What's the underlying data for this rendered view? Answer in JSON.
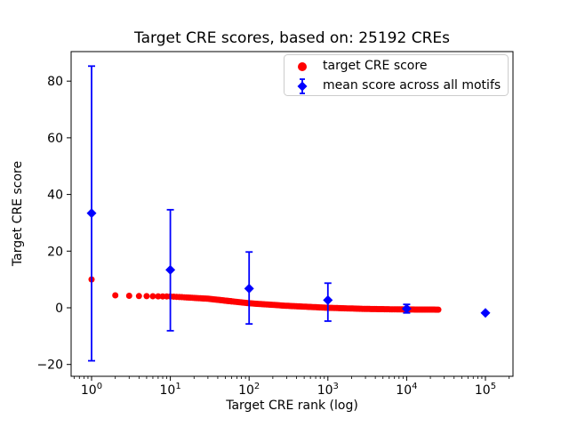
{
  "figure": {
    "title": "Target CRE scores, based on: 25192 CREs",
    "xlabel": "Target CRE rank (log)",
    "ylabel": "Target CRE score",
    "background_color": "#ffffff"
  },
  "legend": {
    "position": "upper right",
    "border_color": "#cccccc",
    "entries": [
      {
        "label": "target CRE score",
        "marker": "red-circle-icon",
        "color": "#ff0000"
      },
      {
        "label": "mean score across all motifs",
        "marker": "blue-diamond-errorbar-icon",
        "color": "#0000ff"
      }
    ]
  },
  "chart_data": {
    "type": "scatter",
    "title": "Target CRE scores, based on: 25192 CREs",
    "xlabel": "Target CRE rank (log)",
    "ylabel": "Target CRE score",
    "x_scale": "log",
    "y_scale": "linear",
    "xlim": [
      0.55,
      220000
    ],
    "ylim": [
      -24,
      90.5
    ],
    "x_tick_exponents": [
      0,
      1,
      2,
      3,
      4,
      5
    ],
    "y_ticks": [
      -20,
      0,
      20,
      40,
      60,
      80
    ],
    "y_tick_labels": [
      "−20",
      "0",
      "20",
      "40",
      "60",
      "80"
    ],
    "grid": false,
    "legend_position": "upper right",
    "series": [
      {
        "name": "target CRE score",
        "type": "scatter",
        "marker": "circle",
        "color": "#ff0000",
        "n_points": 25192,
        "note": "one red dot per CRE rank 1..25192; sampled control points below (score vs rank), linearly interpolated in log10(rank)",
        "sampled_points": {
          "rank": [
            1,
            2,
            3,
            4,
            5,
            10,
            30,
            100,
            300,
            1000,
            3000,
            10000,
            25192
          ],
          "score": [
            10.0,
            4.4,
            4.25,
            4.15,
            4.1,
            4.0,
            3.2,
            1.6,
            0.7,
            0.0,
            -0.4,
            -0.6,
            -0.65
          ]
        }
      },
      {
        "name": "mean score across all motifs",
        "type": "errorbar-scatter",
        "marker": "diamond",
        "color": "#0000ff",
        "points": [
          {
            "x": 1,
            "y": 33.4,
            "err_low": -18.7,
            "err_high": 85.3
          },
          {
            "x": 10,
            "y": 13.4,
            "err_low": -8.1,
            "err_high": 34.6
          },
          {
            "x": 100,
            "y": 6.8,
            "err_low": -5.7,
            "err_high": 19.7
          },
          {
            "x": 1000,
            "y": 2.7,
            "err_low": -4.7,
            "err_high": 8.7
          },
          {
            "x": 10000,
            "y": -0.3,
            "err_low": -1.8,
            "err_high": 1.2
          },
          {
            "x": 100000,
            "y": -1.8,
            "err_low": -1.8,
            "err_high": -1.8
          }
        ]
      }
    ]
  }
}
